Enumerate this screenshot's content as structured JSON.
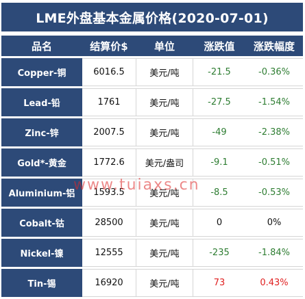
{
  "title": "LME外盘基本金属价格(2020-07-01)",
  "headers": [
    "品名",
    "结算价$",
    "单位",
    "涨跌值",
    "涨跌幅度"
  ],
  "rows": [
    {
      "name": "Copper-铜",
      "price": "6016.5",
      "unit": "美元/吨",
      "change": "-21.5",
      "pct": "-0.36%"
    },
    {
      "name": "Lead-铅",
      "price": "1761",
      "unit": "美元/吨",
      "change": "-27.5",
      "pct": "-1.54%"
    },
    {
      "name": "Zinc-锌",
      "price": "2007.5",
      "unit": "美元/吨",
      "change": "-49",
      "pct": "-2.38%"
    },
    {
      "name": "Gold*-黄金",
      "price": "1772.6",
      "unit": "美元/盎司",
      "change": "-9.1",
      "pct": "-0.51%"
    },
    {
      "name": "Aluminium-铝",
      "price": "1593.5",
      "unit": "美元/吨",
      "change": "-8.5",
      "pct": "-0.53%"
    },
    {
      "name": "Cobalt-钴",
      "price": "28500",
      "unit": "美元/吨",
      "change": "0",
      "pct": "0%"
    },
    {
      "name": "Nickel-镍",
      "price": "12555",
      "unit": "美元/吨",
      "change": "-235",
      "pct": "-1.84%"
    },
    {
      "name": "Tin-锡",
      "price": "16920",
      "unit": "美元/吨",
      "change": "73",
      "pct": "0.43%"
    }
  ],
  "watermark": "www.tuiaxs.cn",
  "colors": {
    "header_bg": "#2d4a78",
    "down": "#2e7d32",
    "up": "#e02020"
  }
}
